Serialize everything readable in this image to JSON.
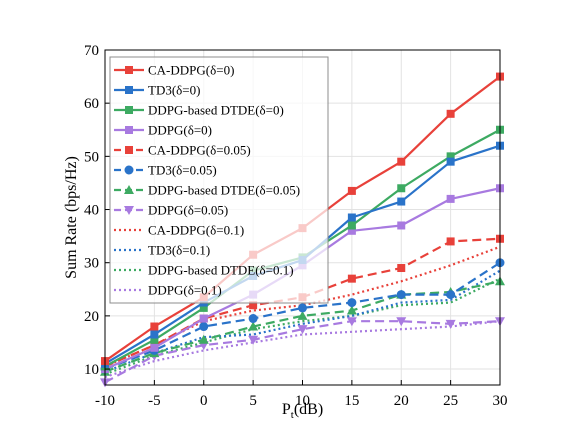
{
  "chart_data": {
    "type": "line",
    "xlabel": "P",
    "xlabel_sub": "t",
    "xlabel_unit": "(dB)",
    "ylabel": "Sum Rate (bps/Hz)",
    "x": [
      -10,
      -5,
      0,
      5,
      10,
      15,
      20,
      25,
      30
    ],
    "xticks": [
      "-10",
      "-5",
      "0",
      "5",
      "10",
      "15",
      "20",
      "25",
      "30"
    ],
    "yticks": [
      "10",
      "20",
      "30",
      "40",
      "50",
      "60",
      "70"
    ],
    "xlim": [
      -10,
      30
    ],
    "ylim": [
      7,
      70
    ],
    "grid": true,
    "legend_position": "top-left",
    "series": [
      {
        "name": "CA-DDPG(δ=0)",
        "color": "#e8413a",
        "dash": "solid",
        "marker": "square",
        "values": [
          11.5,
          18.0,
          23.5,
          31.5,
          36.5,
          43.5,
          49.0,
          58.0,
          65.0
        ]
      },
      {
        "name": "TD3(δ=0)",
        "color": "#2a73c9",
        "dash": "solid",
        "marker": "square",
        "values": [
          11.0,
          16.5,
          22.5,
          27.5,
          30.5,
          38.5,
          41.5,
          49.0,
          52.0
        ]
      },
      {
        "name": "DDPG-based DTDE(δ=0)",
        "color": "#3daa62",
        "dash": "solid",
        "marker": "square",
        "values": [
          10.5,
          15.5,
          21.5,
          28.5,
          31.0,
          37.0,
          44.0,
          50.0,
          55.0
        ]
      },
      {
        "name": "DDPG(δ=0)",
        "color": "#a87ae0",
        "dash": "solid",
        "marker": "square",
        "values": [
          10.0,
          14.0,
          19.5,
          24.0,
          29.5,
          36.0,
          37.0,
          42.0,
          44.0
        ]
      },
      {
        "name": "CA-DDPG(δ=0.05)",
        "color": "#e8413a",
        "dash": "dash",
        "marker": "square",
        "values": [
          10.5,
          14.5,
          19.5,
          22.0,
          23.5,
          27.0,
          29.0,
          34.0,
          34.5
        ]
      },
      {
        "name": "TD3(δ=0.05)",
        "color": "#2a73c9",
        "dash": "dash",
        "marker": "circle",
        "values": [
          10.0,
          13.5,
          18.0,
          19.5,
          21.5,
          22.5,
          24.0,
          24.0,
          30.0
        ]
      },
      {
        "name": "DDPG-based DTDE(δ=0.05)",
        "color": "#3daa62",
        "dash": "dash",
        "marker": "triangle",
        "values": [
          9.5,
          13.0,
          15.5,
          18.0,
          20.0,
          21.0,
          24.0,
          24.5,
          26.5
        ]
      },
      {
        "name": "DDPG(δ=0.05)",
        "color": "#a87ae0",
        "dash": "dash",
        "marker": "triangle-down",
        "values": [
          7.5,
          12.5,
          14.5,
          15.5,
          17.5,
          19.0,
          19.0,
          18.5,
          19.0
        ]
      },
      {
        "name": "CA-DDPG(δ=0.1)",
        "color": "#e8413a",
        "dash": "dot",
        "marker": "none",
        "values": [
          10.5,
          14.5,
          19.0,
          21.0,
          22.0,
          24.0,
          26.5,
          29.5,
          33.0
        ]
      },
      {
        "name": "TD3(δ=0.1)",
        "color": "#2a73c9",
        "dash": "dot",
        "marker": "none",
        "values": [
          9.5,
          13.0,
          16.0,
          16.5,
          18.5,
          20.0,
          22.5,
          23.0,
          28.5
        ]
      },
      {
        "name": "DDPG-based DTDE(δ=0.1)",
        "color": "#3daa62",
        "dash": "dot",
        "marker": "none",
        "values": [
          9.0,
          12.5,
          15.0,
          17.5,
          19.0,
          20.0,
          22.0,
          22.5,
          27.0
        ]
      },
      {
        "name": "DDPG(δ=0.1)",
        "color": "#a87ae0",
        "dash": "dot",
        "marker": "none",
        "values": [
          8.5,
          11.5,
          13.5,
          15.0,
          16.5,
          17.0,
          17.5,
          18.0,
          19.0
        ]
      }
    ]
  }
}
